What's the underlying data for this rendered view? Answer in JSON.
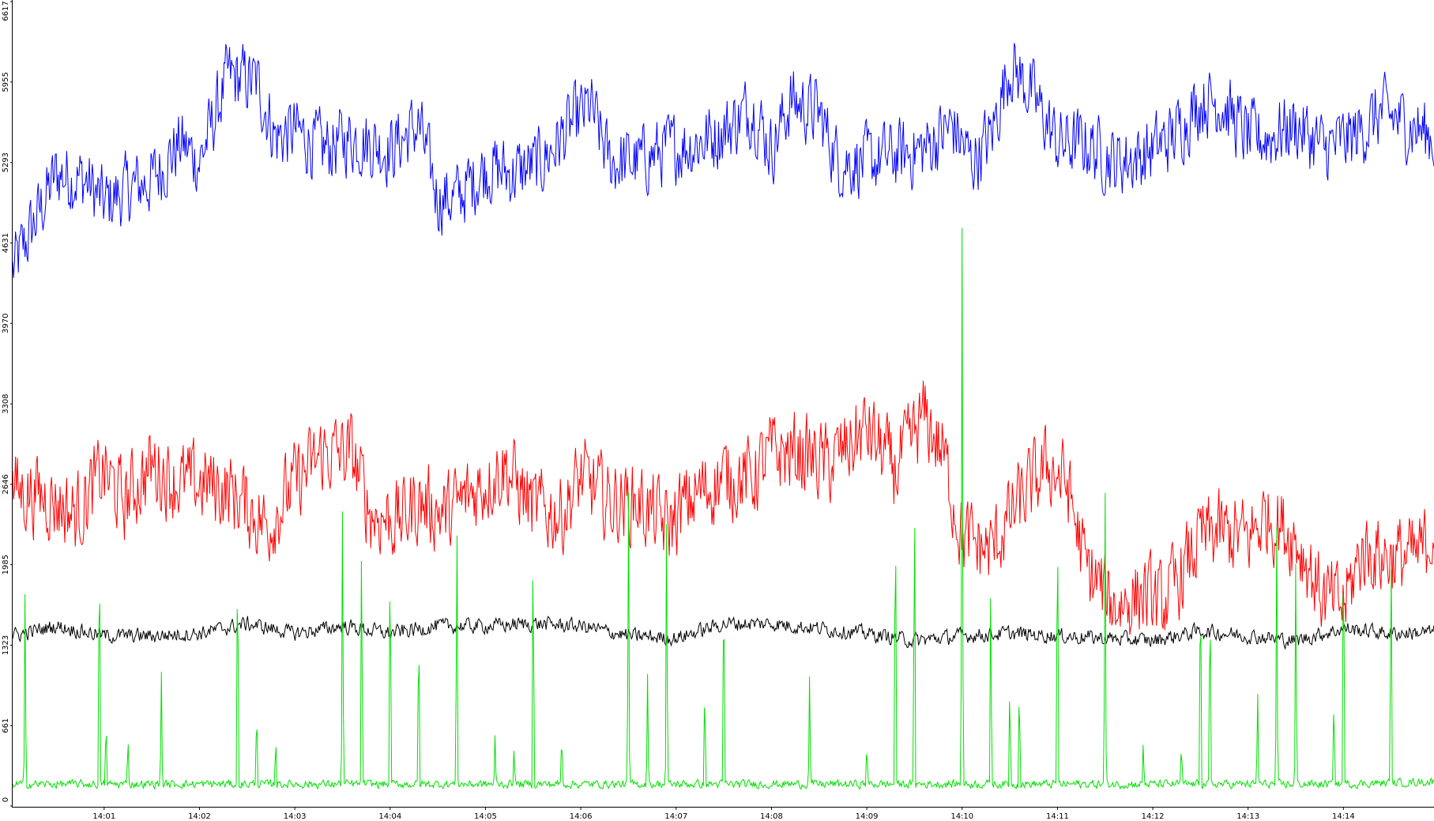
{
  "chart_data": {
    "type": "line",
    "title": "",
    "xlabel": "",
    "ylabel": "",
    "x_ticks": [
      {
        "label": "14:01",
        "t": 1
      },
      {
        "label": "14:02",
        "t": 2
      },
      {
        "label": "14:03",
        "t": 3
      },
      {
        "label": "14:04",
        "t": 4
      },
      {
        "label": "14:05",
        "t": 5
      },
      {
        "label": "14:06",
        "t": 6
      },
      {
        "label": "14:07",
        "t": 7
      },
      {
        "label": "14:08",
        "t": 8
      },
      {
        "label": "14:09",
        "t": 9
      },
      {
        "label": "14:10",
        "t": 10
      },
      {
        "label": "14:11",
        "t": 11
      },
      {
        "label": "14:12",
        "t": 12
      },
      {
        "label": "14:13",
        "t": 13
      },
      {
        "label": "14:14",
        "t": 14
      }
    ],
    "xlim": [
      0.04,
      14.95
    ],
    "y_ticks": [
      "0",
      "661",
      "1323",
      "1985",
      "2646",
      "3308",
      "3970",
      "4631",
      "5293",
      "5955",
      "6617"
    ],
    "ylim": [
      0,
      6617
    ],
    "grid": false,
    "legend": "none",
    "series": [
      {
        "color": "#0000ff",
        "points": [
          [
            0.04,
            4400
          ],
          [
            0.5,
            5200
          ],
          [
            0.8,
            5150
          ],
          [
            1.0,
            4950
          ],
          [
            1.2,
            5050
          ],
          [
            1.5,
            5150
          ],
          [
            1.8,
            5450
          ],
          [
            2.0,
            5300
          ],
          [
            2.3,
            6000
          ],
          [
            2.6,
            5950
          ],
          [
            2.8,
            5500
          ],
          [
            3.0,
            5550
          ],
          [
            3.3,
            5400
          ],
          [
            3.6,
            5500
          ],
          [
            4.0,
            5400
          ],
          [
            4.3,
            5600
          ],
          [
            4.5,
            5000
          ],
          [
            4.7,
            5000
          ],
          [
            5.0,
            5250
          ],
          [
            5.3,
            5200
          ],
          [
            5.6,
            5300
          ],
          [
            5.9,
            5600
          ],
          [
            6.1,
            5750
          ],
          [
            6.3,
            5300
          ],
          [
            6.6,
            5300
          ],
          [
            6.9,
            5400
          ],
          [
            7.2,
            5450
          ],
          [
            7.5,
            5550
          ],
          [
            7.8,
            5750
          ],
          [
            8.0,
            5400
          ],
          [
            8.2,
            5800
          ],
          [
            8.5,
            5700
          ],
          [
            8.7,
            5300
          ],
          [
            9.0,
            5300
          ],
          [
            9.3,
            5350
          ],
          [
            9.6,
            5400
          ],
          [
            9.9,
            5600
          ],
          [
            10.1,
            5300
          ],
          [
            10.3,
            5500
          ],
          [
            10.5,
            6100
          ],
          [
            10.7,
            5900
          ],
          [
            11.0,
            5450
          ],
          [
            11.3,
            5450
          ],
          [
            11.6,
            5300
          ],
          [
            11.9,
            5350
          ],
          [
            12.2,
            5500
          ],
          [
            12.5,
            5800
          ],
          [
            12.7,
            5800
          ],
          [
            13.0,
            5500
          ],
          [
            13.2,
            5500
          ],
          [
            13.5,
            5600
          ],
          [
            13.8,
            5400
          ],
          [
            14.1,
            5500
          ],
          [
            14.4,
            5700
          ],
          [
            14.7,
            5600
          ],
          [
            14.95,
            5500
          ]
        ]
      },
      {
        "color": "#ff0000",
        "points": [
          [
            0.04,
            2600
          ],
          [
            0.4,
            2550
          ],
          [
            0.7,
            2400
          ],
          [
            1.0,
            2750
          ],
          [
            1.2,
            2500
          ],
          [
            1.5,
            2800
          ],
          [
            1.8,
            2650
          ],
          [
            2.1,
            2650
          ],
          [
            2.4,
            2550
          ],
          [
            2.7,
            2300
          ],
          [
            3.0,
            2650
          ],
          [
            3.3,
            2900
          ],
          [
            3.6,
            2900
          ],
          [
            3.8,
            2400
          ],
          [
            4.1,
            2350
          ],
          [
            4.3,
            2500
          ],
          [
            4.6,
            2400
          ],
          [
            4.9,
            2600
          ],
          [
            5.2,
            2800
          ],
          [
            5.5,
            2450
          ],
          [
            5.8,
            2400
          ],
          [
            6.0,
            2700
          ],
          [
            6.3,
            2500
          ],
          [
            6.6,
            2500
          ],
          [
            6.9,
            2300
          ],
          [
            7.2,
            2550
          ],
          [
            7.5,
            2700
          ],
          [
            7.8,
            2700
          ],
          [
            8.0,
            2900
          ],
          [
            8.3,
            2900
          ],
          [
            8.6,
            2800
          ],
          [
            9.0,
            3100
          ],
          [
            9.3,
            2750
          ],
          [
            9.6,
            3200
          ],
          [
            9.8,
            2900
          ],
          [
            10.0,
            2200
          ],
          [
            10.3,
            2100
          ],
          [
            10.6,
            2500
          ],
          [
            10.9,
            2800
          ],
          [
            11.1,
            2650
          ],
          [
            11.3,
            1950
          ],
          [
            11.6,
            1650
          ],
          [
            11.9,
            1750
          ],
          [
            12.1,
            1650
          ],
          [
            12.3,
            1900
          ],
          [
            12.5,
            2200
          ],
          [
            12.7,
            2250
          ],
          [
            13.0,
            2200
          ],
          [
            13.2,
            2400
          ],
          [
            13.5,
            2200
          ],
          [
            13.8,
            1700
          ],
          [
            14.0,
            1650
          ],
          [
            14.2,
            2100
          ],
          [
            14.5,
            2050
          ],
          [
            14.8,
            2050
          ],
          [
            14.95,
            2300
          ]
        ]
      },
      {
        "color": "#000000",
        "points": [
          [
            0.04,
            1400
          ],
          [
            0.5,
            1480
          ],
          [
            1.0,
            1400
          ],
          [
            1.5,
            1400
          ],
          [
            2.0,
            1420
          ],
          [
            2.5,
            1500
          ],
          [
            3.0,
            1420
          ],
          [
            3.5,
            1480
          ],
          [
            4.0,
            1420
          ],
          [
            4.5,
            1480
          ],
          [
            5.0,
            1480
          ],
          [
            5.5,
            1500
          ],
          [
            6.0,
            1480
          ],
          [
            6.5,
            1400
          ],
          [
            7.0,
            1380
          ],
          [
            7.5,
            1500
          ],
          [
            8.0,
            1500
          ],
          [
            8.5,
            1460
          ],
          [
            9.0,
            1420
          ],
          [
            9.5,
            1360
          ],
          [
            10.0,
            1400
          ],
          [
            10.5,
            1420
          ],
          [
            11.0,
            1400
          ],
          [
            11.5,
            1380
          ],
          [
            12.0,
            1360
          ],
          [
            12.5,
            1440
          ],
          [
            13.0,
            1400
          ],
          [
            13.5,
            1360
          ],
          [
            14.0,
            1460
          ],
          [
            14.5,
            1420
          ],
          [
            14.95,
            1430
          ]
        ]
      },
      {
        "color": "#00e000",
        "points": [
          [
            0.04,
            180
          ],
          [
            1.0,
            180
          ],
          [
            2.0,
            180
          ],
          [
            3.0,
            180
          ],
          [
            4.0,
            180
          ],
          [
            5.0,
            180
          ],
          [
            6.0,
            180
          ],
          [
            7.0,
            180
          ],
          [
            8.0,
            180
          ],
          [
            9.0,
            180
          ],
          [
            10.0,
            180
          ],
          [
            11.0,
            180
          ],
          [
            12.0,
            180
          ],
          [
            13.0,
            180
          ],
          [
            14.0,
            180
          ],
          [
            14.95,
            200
          ]
        ],
        "spikes": [
          [
            0.17,
            1850
          ],
          [
            0.95,
            2550
          ],
          [
            1.02,
            780
          ],
          [
            1.25,
            600
          ],
          [
            1.6,
            1150
          ],
          [
            2.4,
            2400
          ],
          [
            2.6,
            900
          ],
          [
            2.8,
            600
          ],
          [
            3.5,
            2600
          ],
          [
            3.7,
            2400
          ],
          [
            4.0,
            2400
          ],
          [
            4.3,
            1700
          ],
          [
            4.7,
            2600
          ],
          [
            5.1,
            600
          ],
          [
            5.3,
            500
          ],
          [
            5.5,
            2400
          ],
          [
            5.8,
            650
          ],
          [
            6.5,
            2800
          ],
          [
            6.7,
            1100
          ],
          [
            6.9,
            2600
          ],
          [
            7.3,
            1100
          ],
          [
            7.5,
            2200
          ],
          [
            8.4,
            1100
          ],
          [
            9.0,
            550
          ],
          [
            9.3,
            2900
          ],
          [
            9.5,
            2950
          ],
          [
            10.0,
            4800
          ],
          [
            10.3,
            2000
          ],
          [
            10.5,
            1100
          ],
          [
            10.6,
            1100
          ],
          [
            11.0,
            2800
          ],
          [
            11.5,
            2750
          ],
          [
            11.9,
            550
          ],
          [
            12.3,
            550
          ],
          [
            12.5,
            2200
          ],
          [
            12.6,
            2000
          ],
          [
            13.1,
            1000
          ],
          [
            13.3,
            2300
          ],
          [
            13.5,
            2200
          ],
          [
            13.9,
            1000
          ],
          [
            14.0,
            2600
          ],
          [
            14.5,
            2450
          ]
        ]
      }
    ]
  }
}
